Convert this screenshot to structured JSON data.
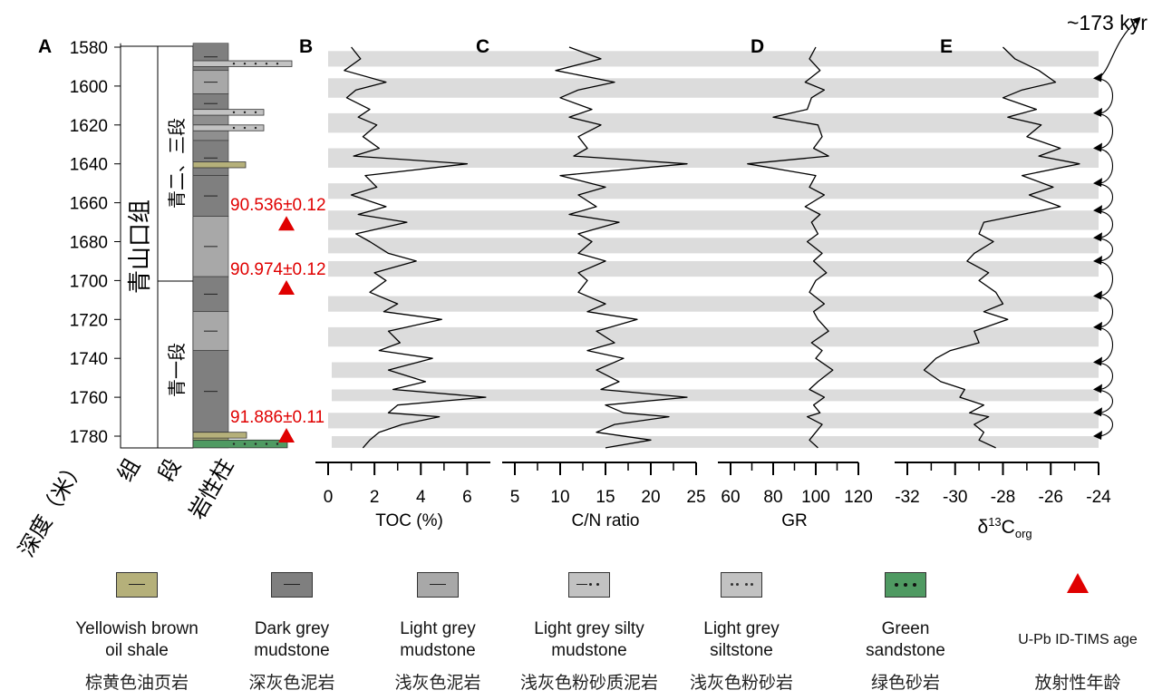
{
  "panels": {
    "A": "A",
    "B": "B",
    "C": "C",
    "D": "D",
    "E": "E"
  },
  "cycle_label": "~173 kyr",
  "depth_axis": {
    "ticks": [
      1580,
      1600,
      1620,
      1640,
      1660,
      1680,
      1700,
      1720,
      1740,
      1760,
      1780
    ],
    "range": [
      1578,
      1786
    ]
  },
  "column_headers": {
    "depth": "深度（米）",
    "formation": "组",
    "member": "段",
    "lithology": "岩性柱"
  },
  "formation_name": "青山口组",
  "member_upper": "青二、三段",
  "member_lower": "青一段",
  "ages": [
    {
      "label": "90.536±0.12",
      "depth": 1671
    },
    {
      "label": "90.974±0.12",
      "depth": 1704
    },
    {
      "label": "91.886±0.11",
      "depth": 1780
    }
  ],
  "legend": [
    {
      "en": "Yellowish brown oil shale",
      "en_lines": [
        "Yellowish brown",
        "oil shale"
      ],
      "cn": "棕黄色油页岩",
      "color": "#b5b07a",
      "symbol": "line"
    },
    {
      "en": "Dark grey mudstone",
      "en_lines": [
        "Dark grey",
        "mudstone"
      ],
      "cn": "深灰色泥岩",
      "color": "#7f7f7f",
      "symbol": "line"
    },
    {
      "en": "Light grey mudstone",
      "en_lines": [
        "Light grey",
        "mudstone"
      ],
      "cn": "浅灰色泥岩",
      "color": "#a8a8a8",
      "symbol": "line"
    },
    {
      "en": "Light grey silty mudstone",
      "en_lines": [
        "Light grey silty",
        "mudstone"
      ],
      "cn": "浅灰色粉砂质泥岩",
      "color": "#c2c2c2",
      "symbol": "line-dots"
    },
    {
      "en": "Light grey siltstone",
      "en_lines": [
        "Light grey",
        "siltstone"
      ],
      "cn": "浅灰色粉砂岩",
      "color": "#c2c2c2",
      "symbol": "dots"
    },
    {
      "en": "Green sandstone",
      "en_lines": [
        "Green",
        "sandstone"
      ],
      "cn": "绿色砂岩",
      "color": "#4f9a62",
      "symbol": "dots3"
    },
    {
      "en": "U-Pb ID-TIMS age",
      "en_lines": [
        "U-Pb ID-TIMS age"
      ],
      "cn": "放射性年龄",
      "color": "#e00000",
      "symbol": "triangle"
    }
  ],
  "chart_data": [
    {
      "panel": "B",
      "type": "line",
      "xlabel": "TOC (%)",
      "xlim": [
        0,
        7
      ],
      "xticks": [
        0,
        2,
        4,
        6
      ],
      "ylim": [
        1578,
        1786
      ],
      "y": [
        1580,
        1586,
        1592,
        1598,
        1602,
        1606,
        1612,
        1616,
        1620,
        1626,
        1632,
        1636,
        1640,
        1646,
        1652,
        1656,
        1662,
        1666,
        1670,
        1676,
        1680,
        1686,
        1690,
        1696,
        1700,
        1706,
        1712,
        1716,
        1720,
        1726,
        1732,
        1736,
        1740,
        1746,
        1752,
        1756,
        1760,
        1764,
        1768,
        1770,
        1774,
        1778,
        1782,
        1786
      ],
      "x": [
        1.0,
        1.4,
        0.7,
        2.5,
        1.2,
        0.8,
        1.8,
        1.3,
        2.1,
        1.5,
        2.2,
        1.1,
        6.0,
        1.6,
        2.1,
        1.0,
        2.5,
        1.3,
        3.4,
        1.2,
        1.8,
        2.6,
        3.8,
        2.0,
        2.5,
        1.8,
        3.0,
        2.4,
        4.9,
        2.6,
        3.1,
        2.2,
        4.5,
        2.6,
        4.2,
        2.8,
        6.8,
        3.0,
        2.6,
        4.8,
        3.2,
        2.2,
        1.8,
        1.5
      ]
    },
    {
      "panel": "C",
      "type": "line",
      "xlabel": "C/N ratio",
      "xlim": [
        5,
        25
      ],
      "xticks": [
        5,
        10,
        15,
        20,
        25
      ],
      "ylim": [
        1578,
        1786
      ],
      "y": [
        1580,
        1586,
        1592,
        1598,
        1602,
        1606,
        1612,
        1616,
        1620,
        1626,
        1632,
        1636,
        1640,
        1646,
        1652,
        1656,
        1662,
        1666,
        1670,
        1676,
        1680,
        1686,
        1690,
        1696,
        1700,
        1706,
        1712,
        1716,
        1720,
        1726,
        1732,
        1736,
        1740,
        1746,
        1752,
        1756,
        1760,
        1764,
        1768,
        1770,
        1774,
        1778,
        1782,
        1786
      ],
      "x": [
        11.0,
        14.5,
        9.5,
        16.0,
        12.0,
        10.0,
        13.5,
        11.0,
        14.5,
        12.0,
        13.0,
        11.5,
        24.0,
        10.0,
        15.0,
        12.0,
        14.0,
        11.0,
        16.5,
        12.0,
        13.5,
        12.0,
        15.0,
        12.0,
        13.0,
        12.0,
        15.0,
        13.0,
        18.5,
        14.0,
        16.0,
        13.0,
        17.0,
        14.0,
        16.5,
        14.5,
        24.0,
        15.0,
        17.0,
        22.0,
        16.0,
        14.0,
        20.0,
        15.0
      ]
    },
    {
      "panel": "D",
      "type": "line",
      "xlabel": "GR",
      "xlim": [
        60,
        120
      ],
      "xticks": [
        60,
        80,
        100,
        120
      ],
      "ylim": [
        1578,
        1786
      ],
      "y": [
        1580,
        1586,
        1592,
        1598,
        1602,
        1606,
        1612,
        1616,
        1620,
        1626,
        1632,
        1636,
        1640,
        1646,
        1652,
        1656,
        1662,
        1666,
        1670,
        1676,
        1680,
        1686,
        1690,
        1696,
        1700,
        1706,
        1712,
        1716,
        1720,
        1726,
        1732,
        1736,
        1740,
        1746,
        1752,
        1756,
        1760,
        1764,
        1768,
        1770,
        1774,
        1778,
        1782,
        1786
      ],
      "x": [
        100,
        97,
        102,
        95,
        104,
        98,
        96,
        80,
        101,
        103,
        99,
        106,
        68,
        100,
        97,
        104,
        95,
        102,
        98,
        101,
        96,
        103,
        99,
        105,
        100,
        97,
        104,
        99,
        101,
        106,
        98,
        103,
        100,
        108,
        101,
        97,
        104,
        99,
        102,
        96,
        103,
        100,
        97,
        101
      ]
    },
    {
      "panel": "E",
      "type": "line",
      "xlabel": "δ13Corg",
      "xlim": [
        -32,
        -24
      ],
      "xticks": [
        -32,
        -30,
        -28,
        -26,
        -24
      ],
      "ylim": [
        1578,
        1786
      ],
      "y": [
        1580,
        1586,
        1592,
        1598,
        1602,
        1606,
        1612,
        1616,
        1620,
        1626,
        1632,
        1636,
        1640,
        1646,
        1652,
        1656,
        1662,
        1666,
        1670,
        1676,
        1680,
        1686,
        1690,
        1696,
        1700,
        1706,
        1712,
        1716,
        1720,
        1726,
        1732,
        1736,
        1740,
        1746,
        1752,
        1756,
        1760,
        1764,
        1768,
        1770,
        1774,
        1778,
        1782,
        1786
      ],
      "x": [
        -28.0,
        -27.5,
        -26.5,
        -25.8,
        -27.2,
        -28.0,
        -26.6,
        -27.8,
        -26.4,
        -27.0,
        -25.6,
        -26.5,
        -24.8,
        -27.2,
        -25.9,
        -26.9,
        -25.6,
        -27.2,
        -28.8,
        -29.0,
        -28.4,
        -29.2,
        -29.5,
        -28.6,
        -29.0,
        -28.3,
        -28.0,
        -28.8,
        -27.8,
        -29.2,
        -29.0,
        -30.2,
        -30.8,
        -31.3,
        -30.6,
        -29.6,
        -29.8,
        -28.8,
        -29.4,
        -28.6,
        -29.2,
        -28.8,
        -29.0,
        -28.3
      ]
    }
  ]
}
